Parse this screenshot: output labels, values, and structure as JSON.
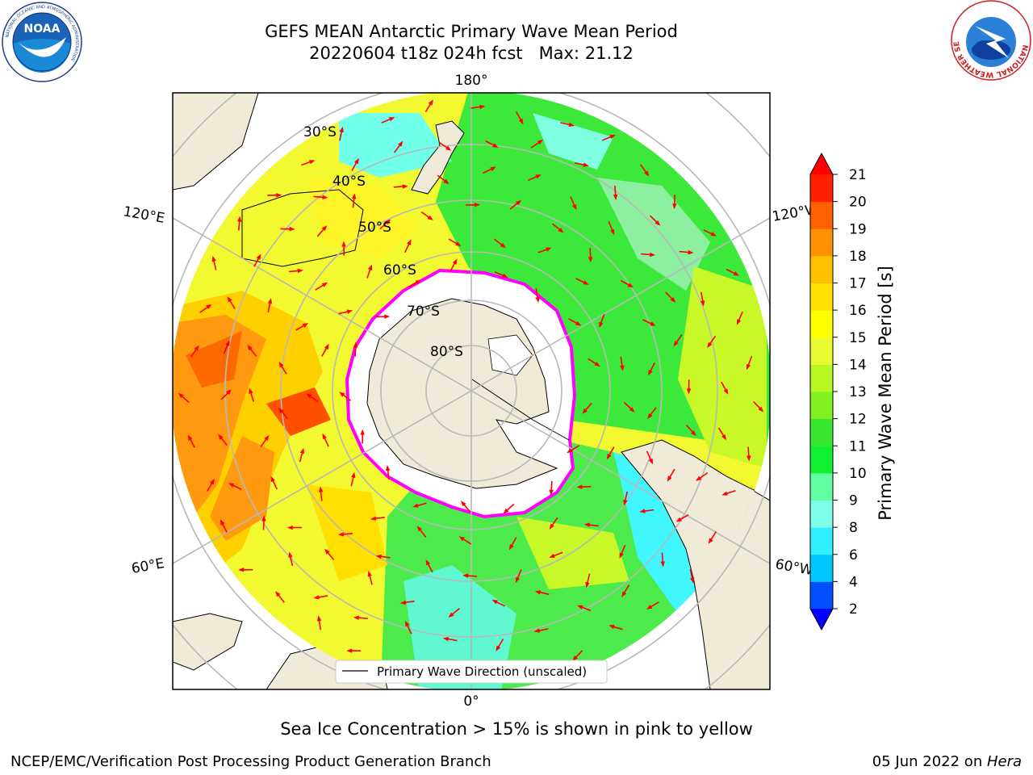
{
  "title": {
    "line1": "GEFS MEAN Antarctic Primary Wave Mean Period",
    "line2": "20220604 t18z 024h fcst   Max: 21.12"
  },
  "logos": {
    "noaa_text": "NOAA",
    "noaa_ring_text": "NATIONAL OCEANIC AND ATMOSPHERIC ADMINISTRATION",
    "noaa_bottom_text": "U.S. DEPARTMENT OF COMMERCE",
    "nws_ring_text": "NATIONAL WEATHER SERVICE"
  },
  "map": {
    "longitude_labels": {
      "top": "180°",
      "bottom": "0°",
      "upper_left": "120°E",
      "upper_right": "120°W",
      "lower_left": "60°E",
      "lower_right": "60°W"
    },
    "latitude_labels": [
      "30°S",
      "40°S",
      "50°S",
      "60°S",
      "70°S",
      "80°S"
    ],
    "legend_label": "Primary Wave Direction (unscaled)",
    "colors": {
      "land": "#efebd8",
      "sea_ice": "#ffffff",
      "ice_edge": "#ff00ff",
      "arrow": "#ff0000"
    }
  },
  "colorbar": {
    "label": "Primary Wave Mean Period [s]",
    "ticks": [
      "2",
      "4",
      "6",
      "8",
      "9",
      "10",
      "11",
      "12",
      "13",
      "14",
      "15",
      "16",
      "17",
      "18",
      "19",
      "20",
      "21"
    ],
    "colors": [
      "#0050ff",
      "#00c8ff",
      "#30f0ff",
      "#80ffe8",
      "#60ffa0",
      "#10f030",
      "#38e830",
      "#80f020",
      "#b8f820",
      "#e8fa30",
      "#ffff00",
      "#ffe000",
      "#ffc000",
      "#ff9000",
      "#ff6000",
      "#ff2000"
    ],
    "extend_low_color": "#0000ff",
    "extend_high_color": "#ff0000"
  },
  "caption": "Sea Ice Concentration > 15% is shown in pink to yellow",
  "footer": {
    "left": "NCEP/EMC/Verification Post Processing Product Generation Branch",
    "right_date": "05 Jun 2022 on ",
    "right_machine": "Hera"
  }
}
